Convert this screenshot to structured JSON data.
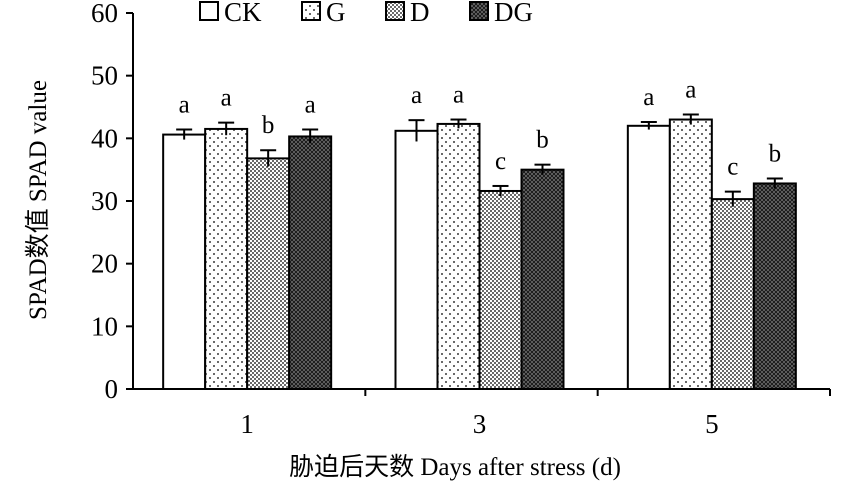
{
  "chart_data": {
    "type": "bar",
    "title": "",
    "xlabel": "胁迫后天数 Days after stress (d)",
    "ylabel": "SPAD数值 SPAD value",
    "ylim": [
      0,
      60
    ],
    "yticks": [
      "0",
      "10",
      "20",
      "30",
      "40",
      "50",
      "60"
    ],
    "categories": [
      "1",
      "3",
      "5"
    ],
    "legend_position": "top",
    "series": [
      {
        "name": "CK",
        "pattern": "blank",
        "values": [
          40.6,
          41.2,
          42.0
        ],
        "errors": [
          0.8,
          1.7,
          0.6
        ],
        "sig": [
          "a",
          "a",
          "a"
        ]
      },
      {
        "name": "G",
        "pattern": "sparse-dots",
        "values": [
          41.5,
          42.3,
          43.0
        ],
        "errors": [
          1.0,
          0.7,
          0.8
        ],
        "sig": [
          "a",
          "a",
          "a"
        ]
      },
      {
        "name": "D",
        "pattern": "dense-dots",
        "values": [
          36.8,
          31.6,
          30.3
        ],
        "errors": [
          1.3,
          0.8,
          1.2
        ],
        "sig": [
          "b",
          "c",
          "c"
        ]
      },
      {
        "name": "DG",
        "pattern": "crosshatch",
        "values": [
          40.3,
          35.0,
          32.8
        ],
        "errors": [
          1.1,
          0.8,
          0.8
        ],
        "sig": [
          "a",
          "b",
          "b"
        ]
      }
    ]
  }
}
